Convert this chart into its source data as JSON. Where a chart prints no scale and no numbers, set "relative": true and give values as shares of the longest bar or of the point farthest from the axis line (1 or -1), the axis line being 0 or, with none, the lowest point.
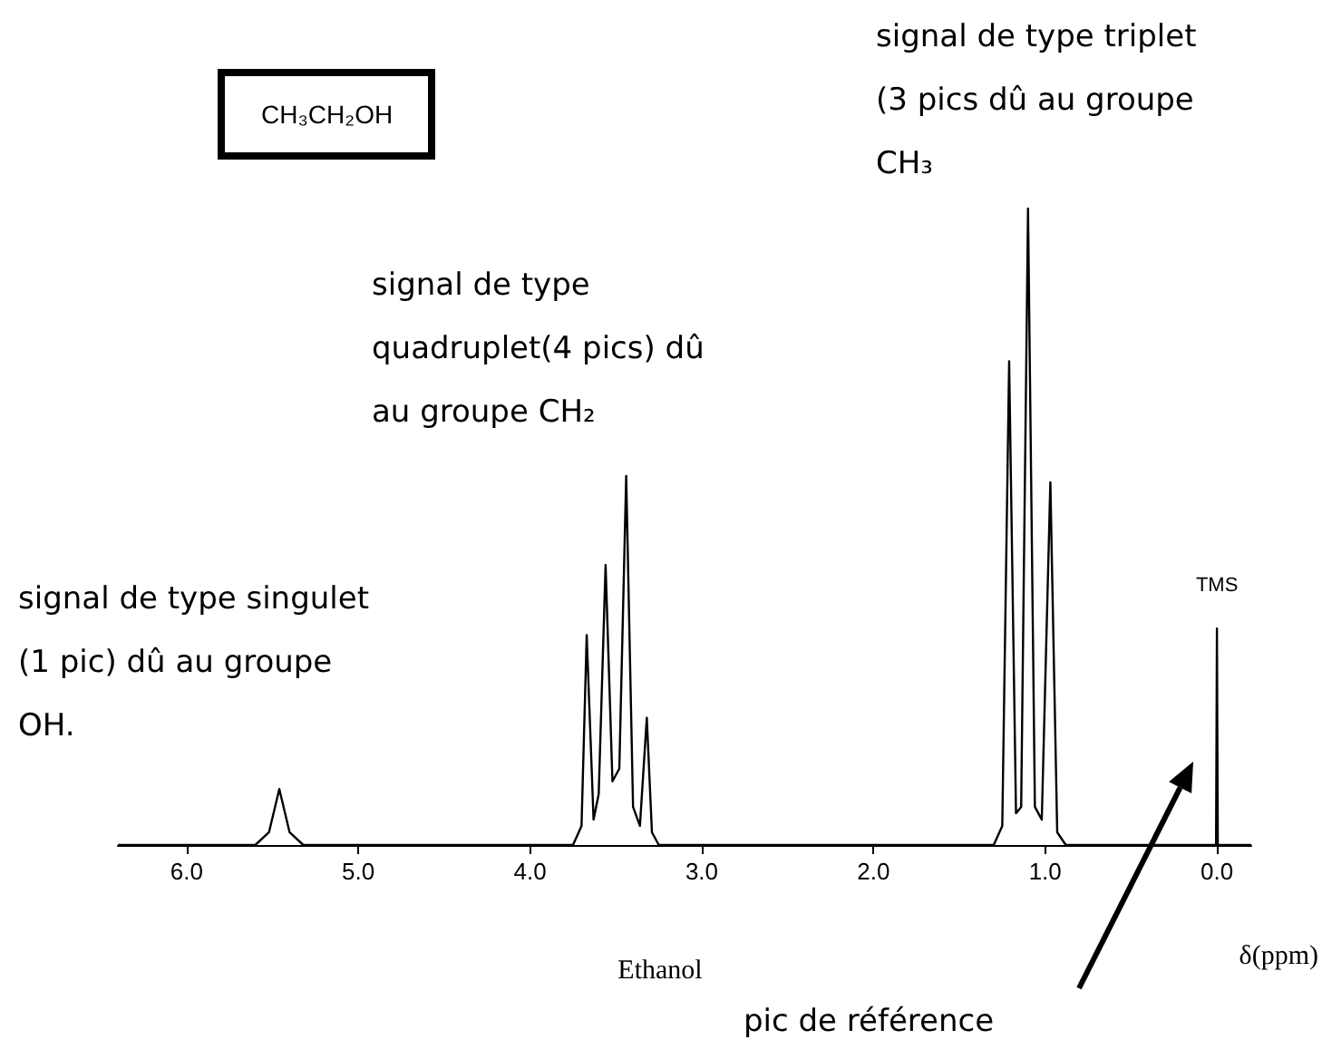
{
  "chart_data": {
    "type": "line",
    "title": "CH₃CH₂OH",
    "xlabel": "δ(ppm)",
    "relative": true,
    "xlim": [
      6.4,
      -0.2
    ],
    "xticks": [
      {
        "value": 6,
        "label": "6.0"
      },
      {
        "value": 5,
        "label": "5.0"
      },
      {
        "value": 4,
        "label": "4.0"
      },
      {
        "value": 3,
        "label": "3.0"
      },
      {
        "value": 2,
        "label": "2.0"
      },
      {
        "value": 1,
        "label": "1.0"
      },
      {
        "value": 0,
        "label": "0.0"
      }
    ],
    "series": [
      {
        "color": "#000000",
        "x": [
          6.4,
          5.6,
          5.52,
          5.46,
          5.4,
          5.32,
          3.75,
          3.7,
          3.67,
          3.63,
          3.6,
          3.56,
          3.52,
          3.48,
          3.44,
          3.4,
          3.36,
          3.32,
          3.29,
          3.25,
          1.3,
          1.25,
          1.21,
          1.17,
          1.14,
          1.1,
          1.06,
          1.02,
          0.97,
          0.93,
          0.88,
          0.005,
          0,
          -0.005,
          -0.2
        ],
        "values": [
          0,
          0,
          0.02,
          0.088,
          0.02,
          0,
          0,
          0.03,
          0.33,
          0.04,
          0.08,
          0.44,
          0.1,
          0.12,
          0.58,
          0.06,
          0.03,
          0.2,
          0.02,
          0,
          0,
          0.03,
          0.76,
          0.05,
          0.06,
          1,
          0.06,
          0.04,
          0.57,
          0.02,
          0,
          0,
          0.34,
          0,
          0
        ]
      }
    ],
    "annotations": [
      "signal de type triplet (3 pics dû au groupe CH₃",
      "signal de type quadruplet(4 pics) dû au groupe CH₂",
      "signal de type singulet (1 pic) dû au groupe OH.",
      {
        "text": "TMS",
        "x": 0,
        "y": 0.34
      },
      "pic de référence",
      "Ethanol"
    ]
  }
}
